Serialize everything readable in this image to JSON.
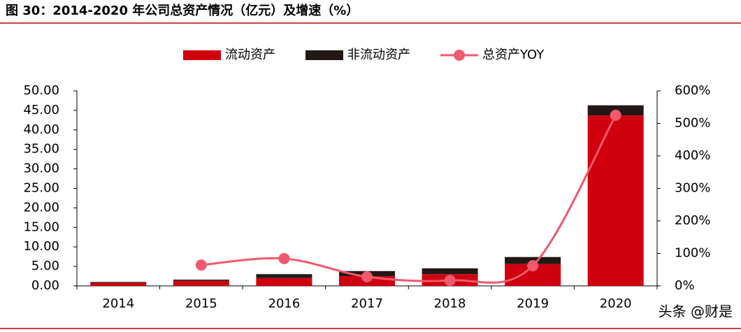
{
  "chart_data": {
    "type": "bar",
    "title": "图 30：2014-2020 年公司总资产情况（亿元）及增速（%）",
    "watermark": "头条 @财是",
    "categories": [
      "2014",
      "2015",
      "2016",
      "2017",
      "2018",
      "2019",
      "2020"
    ],
    "series": [
      {
        "name": "流动资产",
        "type": "bar",
        "color": "#d0000f",
        "values": [
          0.8,
          1.3,
          2.0,
          2.5,
          3.0,
          5.6,
          43.7
        ]
      },
      {
        "name": "非流动资产",
        "type": "bar",
        "color": "#231815",
        "values": [
          0.2,
          0.3,
          1.0,
          1.3,
          1.5,
          1.8,
          2.6
        ]
      },
      {
        "name": "总资产YOY",
        "type": "line",
        "axis": "y2",
        "color": "#f0596e",
        "values": [
          null,
          64,
          84,
          28,
          17,
          62,
          525
        ]
      }
    ],
    "ylim": [
      0,
      50
    ],
    "yticks": [
      {
        "value": 0,
        "label": "0.00"
      },
      {
        "value": 5,
        "label": "5.00"
      },
      {
        "value": 10,
        "label": "10.00"
      },
      {
        "value": 15,
        "label": "15.00"
      },
      {
        "value": 20,
        "label": "20.00"
      },
      {
        "value": 25,
        "label": "25.00"
      },
      {
        "value": 30,
        "label": "30.00"
      },
      {
        "value": 35,
        "label": "35.00"
      },
      {
        "value": 40,
        "label": "40.00"
      },
      {
        "value": 45,
        "label": "45.00"
      },
      {
        "value": 50,
        "label": "50.00"
      }
    ],
    "y2lim": [
      0,
      600
    ],
    "y2ticks": [
      {
        "value": 0,
        "label": "0%"
      },
      {
        "value": 100,
        "label": "100%"
      },
      {
        "value": 200,
        "label": "200%"
      },
      {
        "value": 300,
        "label": "300%"
      },
      {
        "value": 400,
        "label": "400%"
      },
      {
        "value": 500,
        "label": "500%"
      },
      {
        "value": 600,
        "label": "600%"
      }
    ],
    "legend": "top"
  }
}
